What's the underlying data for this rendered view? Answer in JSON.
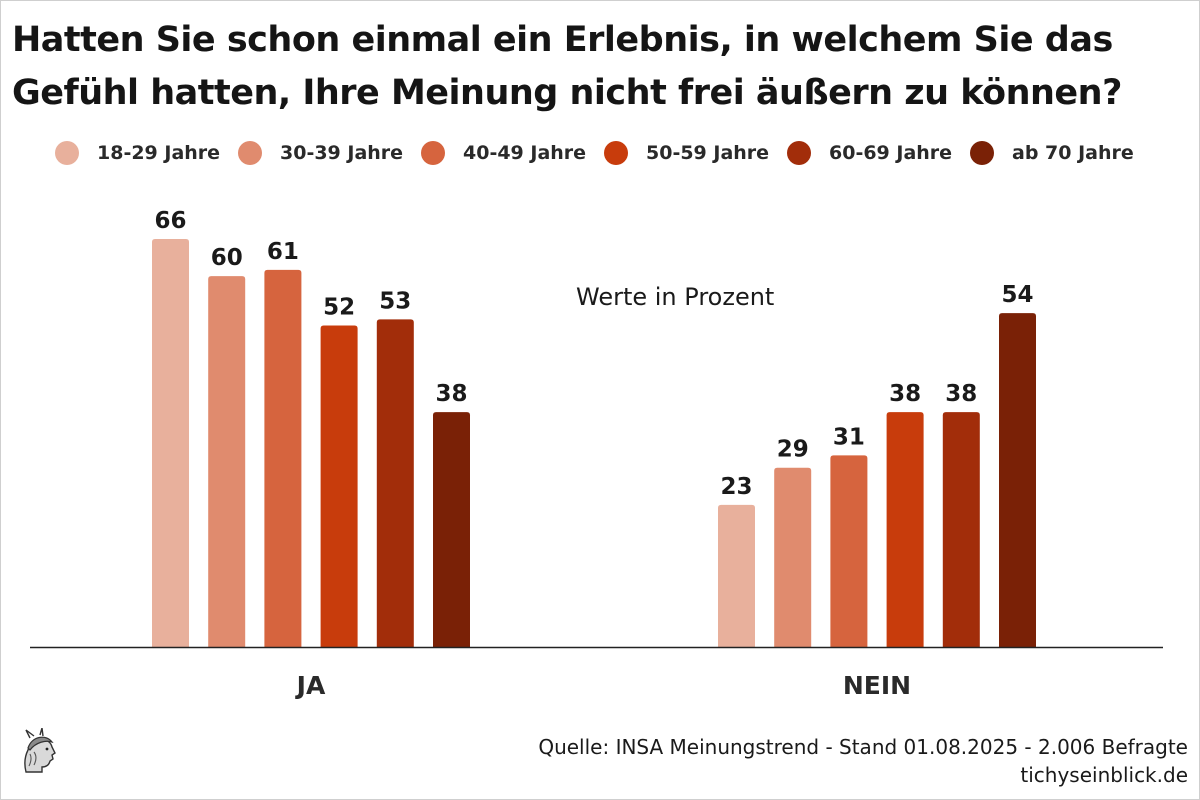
{
  "title_line1": "Hatten Sie schon einmal ein Erlebnis, in welchem Sie das",
  "title_line2": "Gefühl hatten, Ihre Meinung nicht frei äußern zu können?",
  "note": "Werte in Prozent",
  "source_line1": "Quelle: INSA Meinungstrend - Stand 01.08.2025 - 2.006 Befragte",
  "source_line2": "tichyseinblick.de",
  "logo_icon": "hermes-head-logo-icon",
  "chart_data": {
    "type": "bar",
    "categories": [
      "JA",
      "NEIN"
    ],
    "series": [
      {
        "name": "18-29 Jahre",
        "color": "#E8B09C",
        "values": [
          66,
          23
        ]
      },
      {
        "name": "30-39 Jahre",
        "color": "#E08B6E",
        "values": [
          60,
          29
        ]
      },
      {
        "name": "40-49 Jahre",
        "color": "#D6643E",
        "values": [
          61,
          31
        ]
      },
      {
        "name": "50-59 Jahre",
        "color": "#C83C0C",
        "values": [
          52,
          38
        ]
      },
      {
        "name": "60-69 Jahre",
        "color": "#A22D0A",
        "values": [
          53,
          38
        ]
      },
      {
        "name": "ab 70 Jahre",
        "color": "#7A2106",
        "values": [
          38,
          54
        ]
      }
    ],
    "ylim": [
      0,
      66
    ],
    "grid": false,
    "legend_position": "top",
    "data_labels": true
  }
}
